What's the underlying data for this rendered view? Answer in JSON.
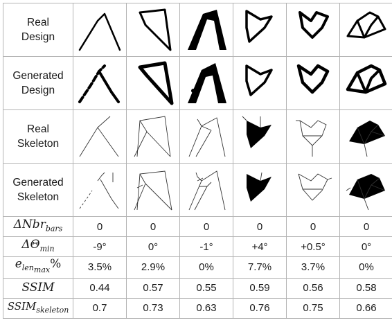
{
  "rows": {
    "real_design": {
      "label_line1": "Real",
      "label_line2": "Design"
    },
    "generated_design": {
      "label_line1": "Generated",
      "label_line2": "Design"
    },
    "real_skeleton": {
      "label_line1": "Real",
      "label_line2": "Skeleton"
    },
    "generated_skeleton": {
      "label_line1": "Generated",
      "label_line2": "Skeleton"
    }
  },
  "metrics": [
    {
      "label": "ΔNbr",
      "sub": "bars",
      "values": [
        "0",
        "0",
        "0",
        "0",
        "0",
        "0"
      ]
    },
    {
      "label": "ΔΘ",
      "sub": "min",
      "values": [
        "-9°",
        "0°",
        "-1°",
        "+4°",
        "+0.5°",
        "0°"
      ]
    },
    {
      "label": "e",
      "sub": "len",
      "subsub": "max",
      "suffix": "%",
      "values": [
        "3.5%",
        "2.9%",
        "0%",
        "7.7%",
        "3.7%",
        "0%"
      ]
    },
    {
      "label": "SSIM",
      "values": [
        "0.44",
        "0.57",
        "0.55",
        "0.59",
        "0.56",
        "0.58"
      ]
    },
    {
      "label": "SSIM",
      "sub": "skeleton",
      "values": [
        "0.7",
        "0.73",
        "0.63",
        "0.76",
        "0.75",
        "0.66"
      ]
    }
  ]
}
